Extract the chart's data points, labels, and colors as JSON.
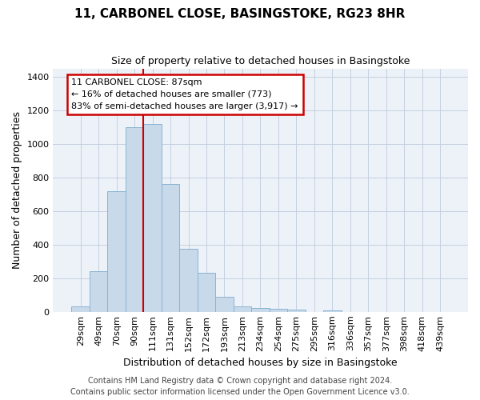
{
  "title": "11, CARBONEL CLOSE, BASINGSTOKE, RG23 8HR",
  "subtitle": "Size of property relative to detached houses in Basingstoke",
  "xlabel": "Distribution of detached houses by size in Basingstoke",
  "ylabel": "Number of detached properties",
  "footer_line1": "Contains HM Land Registry data © Crown copyright and database right 2024.",
  "footer_line2": "Contains public sector information licensed under the Open Government Licence v3.0.",
  "bar_labels": [
    "29sqm",
    "49sqm",
    "70sqm",
    "90sqm",
    "111sqm",
    "131sqm",
    "152sqm",
    "172sqm",
    "193sqm",
    "213sqm",
    "234sqm",
    "254sqm",
    "275sqm",
    "295sqm",
    "316sqm",
    "336sqm",
    "357sqm",
    "377sqm",
    "398sqm",
    "418sqm",
    "439sqm"
  ],
  "bar_values": [
    30,
    240,
    720,
    1100,
    1120,
    760,
    375,
    230,
    90,
    30,
    20,
    15,
    10,
    0,
    5,
    0,
    0,
    0,
    0,
    0,
    0
  ],
  "bar_color": "#c8d9ea",
  "bar_edgecolor": "#8ab4d4",
  "vline_color": "#cc0000",
  "vline_x": 3.5,
  "ylim": [
    0,
    1450
  ],
  "yticks": [
    0,
    200,
    400,
    600,
    800,
    1000,
    1200,
    1400
  ],
  "annotation_text": "11 CARBONEL CLOSE: 87sqm\n← 16% of detached houses are smaller (773)\n83% of semi-detached houses are larger (3,917) →",
  "bg_color": "#edf2f9",
  "grid_color": "#c5cfe0",
  "title_fontsize": 11,
  "subtitle_fontsize": 9,
  "ylabel_fontsize": 9,
  "xlabel_fontsize": 9,
  "tick_fontsize": 8,
  "footer_fontsize": 7
}
